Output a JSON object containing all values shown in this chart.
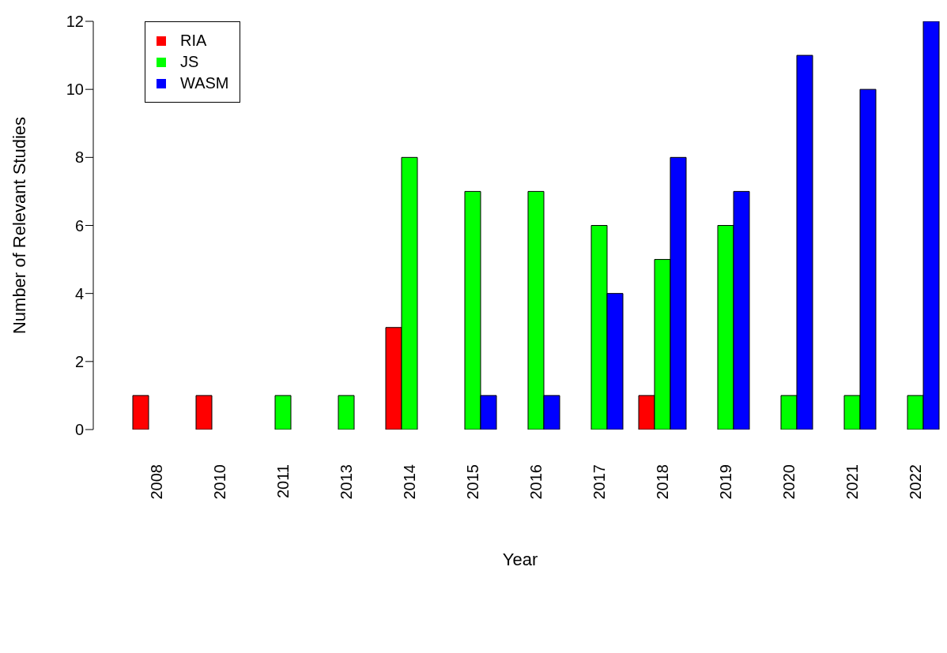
{
  "chart_data": {
    "type": "bar",
    "xlabel": "Year",
    "ylabel": "Number of Relevant Studies",
    "categories": [
      "2008",
      "2010",
      "2011",
      "2013",
      "2014",
      "2015",
      "2016",
      "2017",
      "2018",
      "2019",
      "2020",
      "2021",
      "2022"
    ],
    "series": [
      {
        "name": "RIA",
        "color": "#ff0000",
        "values": [
          1,
          1,
          0,
          0,
          3,
          0,
          0,
          0,
          1,
          0,
          0,
          0,
          0
        ]
      },
      {
        "name": "JS",
        "color": "#00ff00",
        "values": [
          0,
          0,
          1,
          1,
          8,
          7,
          7,
          6,
          5,
          6,
          1,
          1,
          1
        ]
      },
      {
        "name": "WASM",
        "color": "#0000ff",
        "values": [
          0,
          0,
          0,
          0,
          0,
          1,
          1,
          4,
          8,
          7,
          11,
          10,
          12
        ]
      }
    ],
    "ylim": [
      0,
      12
    ],
    "yticks": [
      0,
      2,
      4,
      6,
      8,
      10,
      12
    ],
    "grid": false,
    "legend": "top left"
  }
}
